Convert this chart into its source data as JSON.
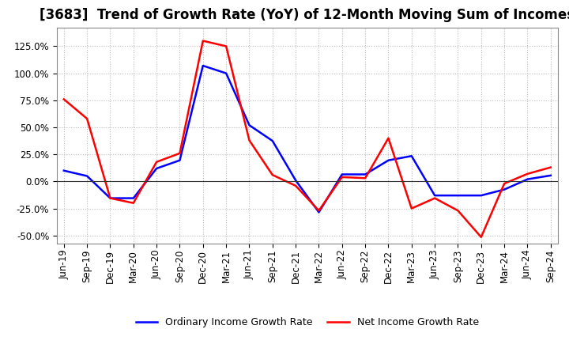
{
  "title": "[3683]  Trend of Growth Rate (YoY) of 12-Month Moving Sum of Incomes",
  "x_labels": [
    "Jun-19",
    "Sep-19",
    "Dec-19",
    "Mar-20",
    "Jun-20",
    "Sep-20",
    "Dec-20",
    "Mar-21",
    "Jun-21",
    "Sep-21",
    "Dec-21",
    "Mar-22",
    "Jun-22",
    "Sep-22",
    "Dec-22",
    "Mar-23",
    "Jun-23",
    "Sep-23",
    "Dec-23",
    "Mar-24",
    "Jun-24",
    "Sep-24"
  ],
  "ordinary_income": [
    0.1,
    0.05,
    -0.155,
    -0.155,
    0.12,
    0.195,
    1.07,
    1.0,
    0.52,
    0.375,
    0.01,
    -0.285,
    0.065,
    0.065,
    0.195,
    0.235,
    -0.13,
    -0.13,
    -0.13,
    -0.075,
    0.02,
    0.055
  ],
  "net_income": [
    0.76,
    0.58,
    -0.155,
    -0.2,
    0.18,
    0.26,
    1.3,
    1.25,
    0.38,
    0.06,
    -0.04,
    -0.27,
    0.04,
    0.03,
    0.4,
    -0.25,
    -0.155,
    -0.27,
    -0.515,
    -0.02,
    0.07,
    0.13
  ],
  "ordinary_color": "#0000ff",
  "net_color": "#ff0000",
  "ylim": [
    -0.575,
    1.42
  ],
  "yticks": [
    -0.5,
    -0.25,
    0.0,
    0.25,
    0.5,
    0.75,
    1.0,
    1.25
  ],
  "background_color": "#ffffff",
  "grid_color": "#bbbbbb",
  "legend_ordinary": "Ordinary Income Growth Rate",
  "legend_net": "Net Income Growth Rate",
  "title_fontsize": 12,
  "tick_fontsize": 8.5
}
